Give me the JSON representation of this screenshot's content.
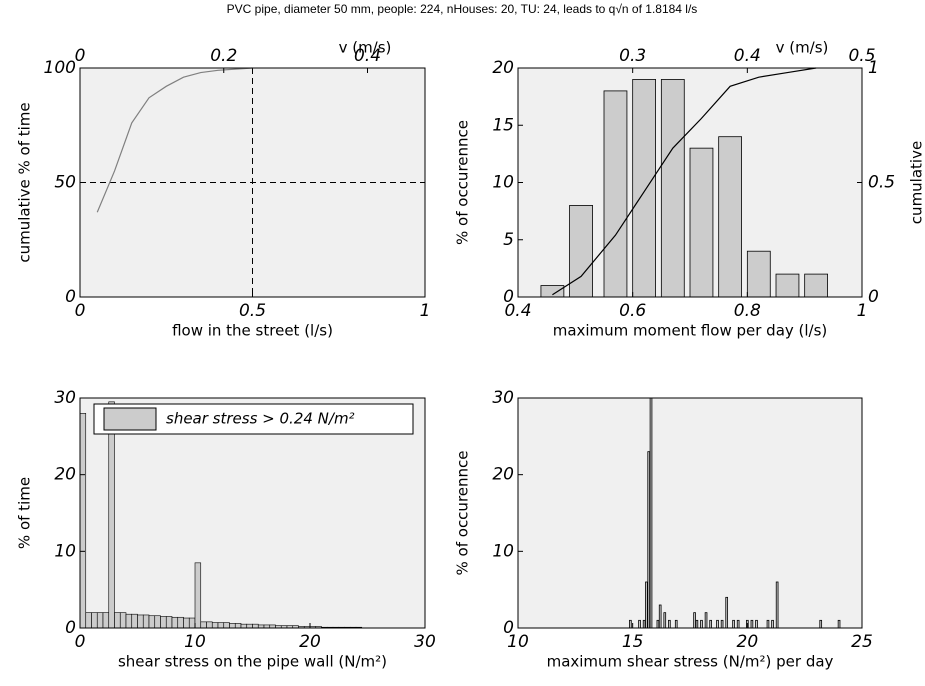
{
  "title": "PVC pipe, diameter 50 mm, people: 224, nHouses: 20, TU: 24, leads to q√n of 1.8184 l/s",
  "chart_data": [
    {
      "type": "line",
      "xlabel": "flow in the street (l/s)",
      "ylabel": "cumulative % of time",
      "x2label": "v (m/s)",
      "x": [
        0.05,
        0.1,
        0.15,
        0.2,
        0.25,
        0.3,
        0.35,
        0.4,
        0.45,
        0.5
      ],
      "values": [
        37,
        55,
        76,
        87,
        92,
        96,
        98,
        99,
        99.5,
        100
      ],
      "color": "#808080",
      "xlim": [
        0,
        1
      ],
      "xticks": [
        0,
        0.5,
        1
      ],
      "ylim": [
        0,
        100
      ],
      "yticks": [
        0,
        50,
        100
      ],
      "x2lim": [
        0,
        0.48
      ],
      "x2ticks": [
        0,
        0.2,
        0.4
      ],
      "vlines": [
        0.5
      ],
      "hlines": [
        50
      ]
    },
    {
      "type": "bar",
      "xlabel": "maximum moment flow per day (l/s)",
      "ylabel": "% of occurennce",
      "y2label": "cumulative",
      "x2label": "v (m/s)",
      "x": [
        0.46,
        0.51,
        0.57,
        0.62,
        0.67,
        0.72,
        0.77,
        0.82,
        0.87,
        0.92
      ],
      "series": [
        {
          "type": "bar",
          "color": "#cccccc",
          "values": [
            1,
            8,
            18,
            19,
            19,
            13,
            14,
            4,
            2,
            2
          ]
        },
        {
          "type": "line",
          "axis": "y2",
          "color": "#000000",
          "values": [
            0.01,
            0.09,
            0.27,
            0.46,
            0.65,
            0.78,
            0.92,
            0.96,
            0.98,
            1.0
          ]
        }
      ],
      "xlim": [
        0.4,
        1
      ],
      "xticks": [
        0.4,
        0.6,
        0.8,
        1
      ],
      "ylim": [
        0,
        20
      ],
      "yticks": [
        0,
        5,
        10,
        15,
        20
      ],
      "y2lim": [
        0,
        1
      ],
      "y2ticks": [
        0,
        0.5,
        1
      ],
      "x2lim": [
        0.2,
        0.5
      ],
      "x2ticks": [
        0.3,
        0.4,
        0.5
      ]
    },
    {
      "type": "histogram",
      "xlabel": "shear stress on the pipe wall (N/m²)",
      "ylabel": "% of time",
      "legend": "top",
      "bins": [
        0,
        0.5,
        1,
        1.5,
        2,
        2.5,
        3,
        3.5,
        4,
        4.5,
        5,
        5.5,
        6,
        6.5,
        7,
        7.5,
        8,
        8.5,
        9,
        9.5,
        10,
        10.5,
        11,
        11.5,
        12,
        12.5,
        13,
        13.5,
        14,
        14.5,
        15,
        15.5,
        16,
        16.5,
        17,
        17.5,
        18,
        18.5,
        19,
        19.5,
        20,
        20.5,
        21,
        21.5,
        22,
        22.5,
        23,
        23.5,
        24,
        24.5,
        25,
        25.5,
        26,
        26.5,
        27,
        27.5,
        28,
        28.5,
        29,
        29.5,
        30
      ],
      "series": [
        {
          "name": "shear stress > 0.24 N/m²",
          "color": "#cccccc",
          "values": [
            28,
            2,
            2,
            2,
            2,
            29.5,
            2,
            2,
            1.8,
            1.8,
            1.7,
            1.7,
            1.6,
            1.6,
            1.5,
            1.5,
            1.4,
            1.4,
            1.3,
            1.3,
            8.5,
            0.8,
            0.8,
            0.7,
            0.7,
            0.7,
            0.6,
            0.6,
            0.5,
            0.5,
            0.5,
            0.4,
            0.4,
            0.4,
            0.3,
            0.3,
            0.3,
            0.3,
            0.2,
            0.2,
            0.2,
            0.2,
            0.1,
            0.1,
            0.1,
            0.1,
            0.1,
            0.1,
            0.1,
            0,
            0,
            0,
            0,
            0,
            0,
            0,
            0,
            0,
            0,
            0
          ]
        }
      ],
      "xlim": [
        0,
        30
      ],
      "xticks": [
        0,
        10,
        20,
        30
      ],
      "ylim": [
        0,
        30
      ],
      "yticks": [
        0,
        10,
        20,
        30
      ]
    },
    {
      "type": "bar",
      "xlabel": "maximum shear stress (N/m²) per day",
      "ylabel": "% of occurennce",
      "x": [
        14.9,
        15.3,
        15.5,
        15.6,
        15.7,
        15.8,
        16.1,
        16.2,
        16.4,
        16.6,
        16.9,
        17.7,
        17.8,
        18.0,
        18.2,
        18.4,
        18.7,
        18.9,
        19.1,
        19.4,
        19.6,
        20.0,
        20.2,
        20.4,
        20.9,
        21.1,
        21.3,
        23.2,
        24.0
      ],
      "series": [
        {
          "type": "bar",
          "color": "#cccccc",
          "values": [
            1,
            1,
            1,
            6,
            23,
            30,
            1,
            3,
            2,
            1,
            1,
            2,
            1,
            1,
            2,
            1,
            1,
            1,
            4,
            1,
            1,
            1,
            1,
            1,
            1,
            1,
            6,
            1,
            1
          ]
        }
      ],
      "xlim": [
        10,
        25
      ],
      "xticks": [
        10,
        15,
        20,
        25
      ],
      "ylim": [
        0,
        30
      ],
      "yticks": [
        0,
        10,
        20,
        30
      ]
    }
  ]
}
